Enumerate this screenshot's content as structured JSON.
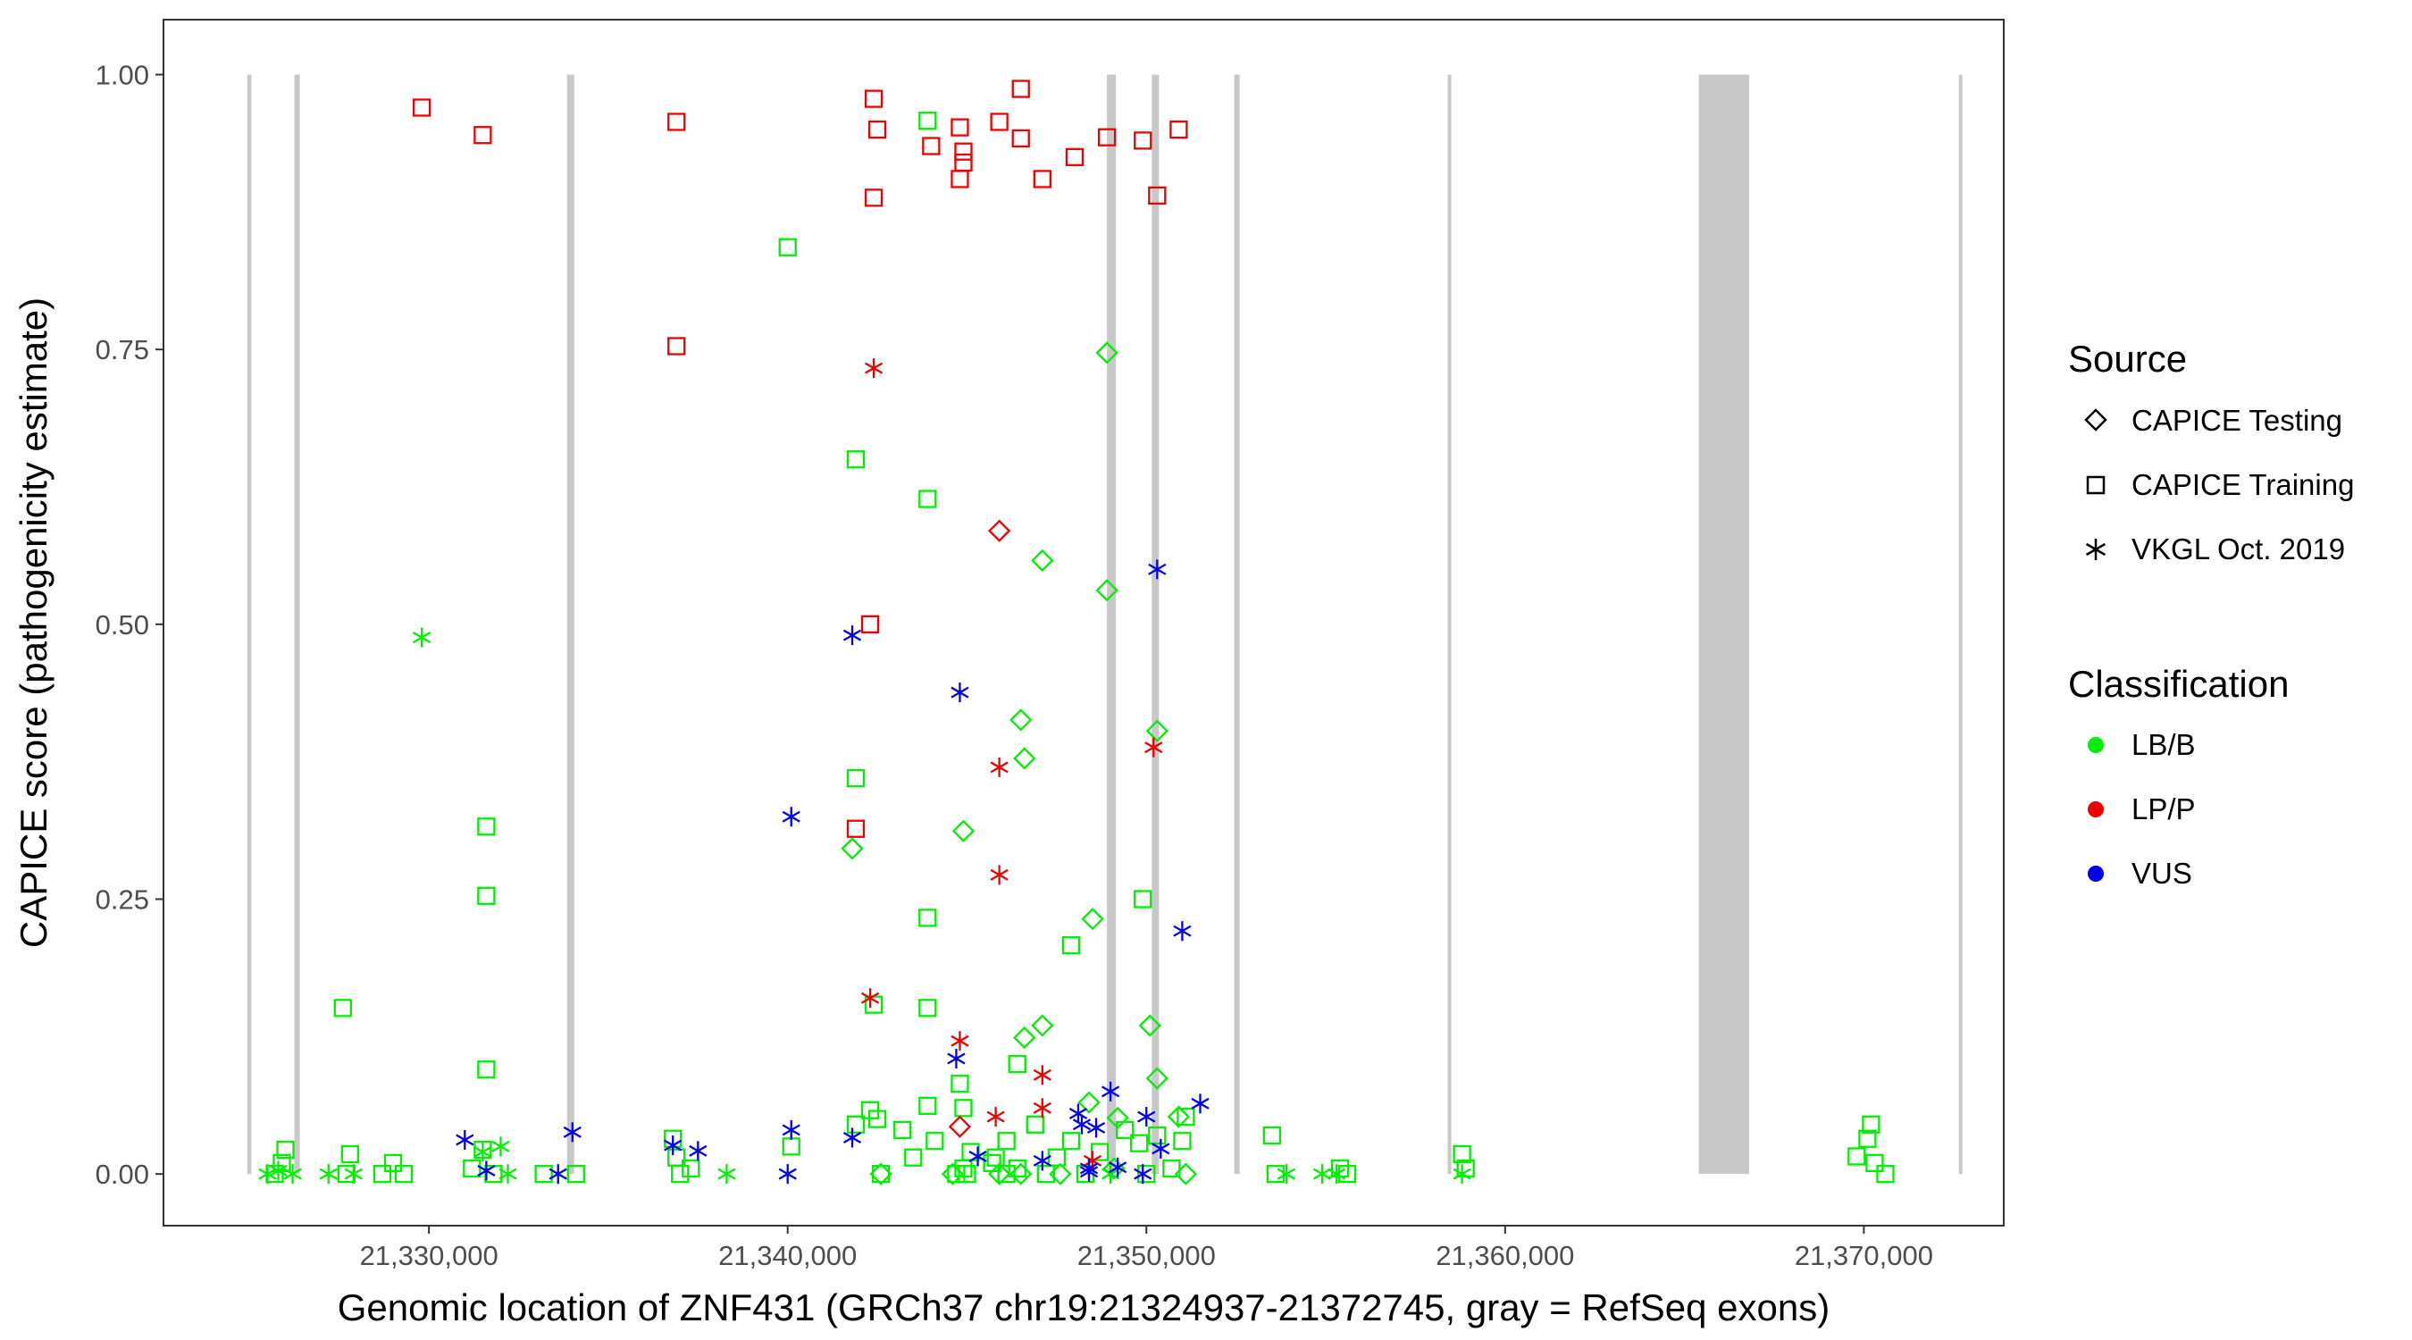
{
  "chart_data": {
    "type": "scatter",
    "title": "",
    "xlabel": "Genomic location of ZNF431 (GRCh37 chr19:21324937-21372745, gray = RefSeq exons)",
    "ylabel": "CAPICE score (pathogenicity estimate)",
    "xlim": [
      21322600,
      21373900
    ],
    "ylim": [
      -0.047,
      1.05
    ],
    "x_ticks": [
      21330000,
      21340000,
      21350000,
      21360000,
      21370000
    ],
    "x_tick_labels": [
      "21,330,000",
      "21,340,000",
      "21,350,000",
      "21,360,000",
      "21,370,000"
    ],
    "y_ticks": [
      0,
      0.25,
      0.5,
      0.75,
      1.0
    ],
    "y_tick_labels": [
      "0.00",
      "0.25",
      "0.50",
      "0.75",
      "1.00"
    ],
    "grid": false,
    "exons": [
      [
        21324937,
        21325050
      ],
      [
        21326250,
        21326400
      ],
      [
        21333850,
        21334050
      ],
      [
        21348900,
        21349150
      ],
      [
        21350150,
        21350350
      ],
      [
        21352450,
        21352600
      ],
      [
        21358400,
        21358500
      ],
      [
        21365400,
        21366800
      ],
      [
        21372650,
        21372745
      ]
    ],
    "legend": {
      "position": "right",
      "source": {
        "title": "Source",
        "entries": [
          {
            "label": "CAPICE Testing",
            "shape": "diamond"
          },
          {
            "label": "CAPICE Training",
            "shape": "square"
          },
          {
            "label": "VKGL Oct. 2019",
            "shape": "asterisk"
          }
        ]
      },
      "classification": {
        "title": "Classification",
        "entries": [
          {
            "label": "LB/B",
            "color": "#00ee00"
          },
          {
            "label": "LP/P",
            "color": "#ee0000"
          },
          {
            "label": "VUS",
            "color": "#0000ee"
          }
        ]
      }
    },
    "series": [
      {
        "source": "CAPICE Training",
        "classification": "LP/P",
        "x": [
          21329800,
          21331500,
          21336900,
          21336900,
          21342400,
          21342500,
          21342400,
          21344000,
          21344800,
          21344900,
          21344900,
          21344800,
          21345900,
          21346500,
          21346500,
          21347100,
          21348000,
          21348900,
          21349900,
          21350300,
          21350900,
          21341900,
          21342300
        ],
        "y": [
          0.97,
          0.945,
          0.957,
          0.753,
          0.978,
          0.95,
          0.888,
          0.935,
          0.952,
          0.93,
          0.92,
          0.905,
          0.957,
          0.987,
          0.942,
          0.905,
          0.925,
          0.943,
          0.94,
          0.89,
          0.95,
          0.314,
          0.5
        ]
      },
      {
        "source": "CAPICE Training",
        "classification": "LB/B",
        "x": [
          21343900,
          21340000,
          21341900,
          21343900,
          21341900,
          21343900,
          21331600,
          21331600,
          21327600,
          21331600,
          21343900,
          21342400,
          21347900,
          21349900,
          21325700,
          21325900,
          21326000,
          21327700,
          21327800,
          21328700,
          21329000,
          21329300,
          21331200,
          21331500,
          21331800,
          21333200,
          21334100,
          21336800,
          21336900,
          21337000,
          21337300,
          21340100,
          21341900,
          21342300,
          21342500,
          21342600,
          21343200,
          21343500,
          21343900,
          21344100,
          21344800,
          21344900,
          21345000,
          21345100,
          21345700,
          21346100,
          21346400,
          21346900,
          21347200,
          21347500,
          21347900,
          21348300,
          21348700,
          21349400,
          21349800,
          21350000,
          21350300,
          21350700,
          21351000,
          21351100,
          21353500,
          21353600,
          21355400,
          21355600,
          21358800,
          21358900,
          21369800,
          21370100,
          21370200,
          21370300,
          21370600,
          21344700,
          21344900,
          21346100,
          21346400,
          21345800
        ],
        "y": [
          0.958,
          0.843,
          0.65,
          0.614,
          0.36,
          0.233,
          0.316,
          0.253,
          0.151,
          0.095,
          0.151,
          0.154,
          0.208,
          0.25,
          0.0,
          0.01,
          0.022,
          0.0,
          0.018,
          0.0,
          0.01,
          0.0,
          0.005,
          0.022,
          0.0,
          0.0,
          0.0,
          0.032,
          0.015,
          0.0,
          0.005,
          0.025,
          0.045,
          0.058,
          0.05,
          0.0,
          0.04,
          0.015,
          0.062,
          0.03,
          0.082,
          0.06,
          0.0,
          0.02,
          0.01,
          0.03,
          0.1,
          0.045,
          0.0,
          0.015,
          0.03,
          0.0,
          0.02,
          0.04,
          0.028,
          0.0,
          0.035,
          0.005,
          0.03,
          0.052,
          0.035,
          0.0,
          0.005,
          0.0,
          0.018,
          0.005,
          0.016,
          0.032,
          0.045,
          0.01,
          0.0,
          0.0,
          0.005,
          0.0,
          0.005,
          0.015
        ]
      },
      {
        "source": "CAPICE Testing",
        "classification": "LB/B",
        "x": [
          21348900,
          21347100,
          21348900,
          21346500,
          21350300,
          21344900,
          21346600,
          21341800,
          21348500,
          21347100,
          21346600,
          21350100,
          21350300,
          21348400,
          21349200,
          21350900,
          21345900,
          21346500,
          21349100,
          21351100,
          21344600,
          21342600,
          21347600
        ],
        "y": [
          0.747,
          0.558,
          0.531,
          0.413,
          0.403,
          0.312,
          0.378,
          0.296,
          0.232,
          0.135,
          0.124,
          0.135,
          0.087,
          0.065,
          0.051,
          0.052,
          0.0,
          0.0,
          0.005,
          0.0,
          0.0,
          0.0,
          0.0
        ]
      },
      {
        "source": "CAPICE Testing",
        "classification": "LP/P",
        "x": [
          21345900,
          21344800
        ],
        "y": [
          0.585,
          0.043
        ]
      },
      {
        "source": "VKGL Oct. 2019",
        "classification": "LB/B",
        "x": [
          21329800,
          21325500,
          21325800,
          21326200,
          21327200,
          21327900,
          21331500,
          21332000,
          21332200,
          21338300,
          21349000,
          21353900,
          21354900,
          21355300,
          21358800
        ],
        "y": [
          0.488,
          0.0,
          0.003,
          0.0,
          0.0,
          0.0,
          0.02,
          0.025,
          0.0,
          0.0,
          0.0,
          0.0,
          0.0,
          0.0,
          0.0
        ]
      },
      {
        "source": "VKGL Oct. 2019",
        "classification": "LP/P",
        "x": [
          21342400,
          21345900,
          21350200,
          21345900,
          21342300,
          21344800,
          21347100,
          21345800,
          21347100,
          21348500
        ],
        "y": [
          0.733,
          0.37,
          0.388,
          0.272,
          0.16,
          0.121,
          0.09,
          0.052,
          0.06,
          0.012
        ]
      },
      {
        "source": "VKGL Oct. 2019",
        "classification": "VUS",
        "x": [
          21350300,
          21341800,
          21344800,
          21340100,
          21351000,
          21351500,
          21344700,
          21349000,
          21348100,
          21350000,
          21331000,
          21331600,
          21333600,
          21334000,
          21336800,
          21337500,
          21340100,
          21340000,
          21341800,
          21345300,
          21347100,
          21348200,
          21348400,
          21348600,
          21349200,
          21349900,
          21350400,
          21348400
        ],
        "y": [
          0.55,
          0.49,
          0.438,
          0.325,
          0.221,
          0.064,
          0.105,
          0.075,
          0.055,
          0.052,
          0.031,
          0.003,
          0.0,
          0.038,
          0.026,
          0.021,
          0.04,
          0.0,
          0.033,
          0.016,
          0.012,
          0.045,
          0.002,
          0.042,
          0.006,
          0.0,
          0.023,
          0.005
        ]
      }
    ]
  }
}
